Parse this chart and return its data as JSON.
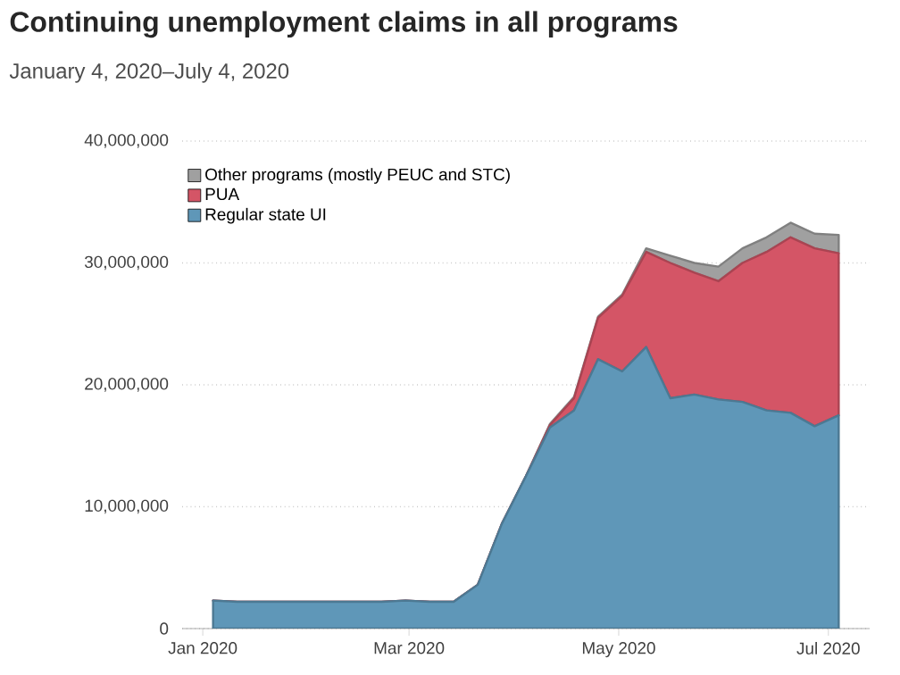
{
  "chart_data": {
    "type": "area",
    "title": "Continuing unemployment claims in all programs",
    "subtitle": "January 4, 2020–July 4, 2020",
    "stacked": true,
    "grid": "y",
    "legend": "top left",
    "x": [
      "2020-01-04",
      "2020-01-11",
      "2020-01-18",
      "2020-01-25",
      "2020-02-01",
      "2020-02-08",
      "2020-02-15",
      "2020-02-22",
      "2020-02-29",
      "2020-03-07",
      "2020-03-14",
      "2020-03-21",
      "2020-03-28",
      "2020-04-04",
      "2020-04-11",
      "2020-04-18",
      "2020-04-25",
      "2020-05-02",
      "2020-05-09",
      "2020-05-16",
      "2020-05-23",
      "2020-05-30",
      "2020-06-06",
      "2020-06-13",
      "2020-06-20",
      "2020-06-27",
      "2020-07-04"
    ],
    "series": [
      {
        "name": "Regular state UI",
        "color": "#5f97b8",
        "values": [
          2300000,
          2200000,
          2200000,
          2200000,
          2200000,
          2200000,
          2200000,
          2200000,
          2300000,
          2200000,
          2200000,
          3600000,
          8600000,
          12500000,
          16500000,
          17900000,
          22100000,
          21100000,
          23100000,
          18900000,
          19200000,
          18800000,
          18600000,
          17900000,
          17700000,
          16600000,
          17500000
        ]
      },
      {
        "name": "PUA",
        "color": "#d45566",
        "values": [
          0,
          0,
          0,
          0,
          0,
          0,
          0,
          0,
          0,
          0,
          0,
          0,
          0,
          0,
          200000,
          1000000,
          3400000,
          6200000,
          7800000,
          11100000,
          10000000,
          9700000,
          11400000,
          13000000,
          14400000,
          14600000,
          13300000
        ]
      },
      {
        "name": "Other programs (mostly PEUC and STC)",
        "color": "#a0a0a0",
        "values": [
          0,
          0,
          0,
          0,
          0,
          0,
          0,
          0,
          0,
          0,
          0,
          0,
          0,
          0,
          100000,
          100000,
          100000,
          100000,
          300000,
          600000,
          800000,
          1200000,
          1200000,
          1200000,
          1200000,
          1200000,
          1500000
        ]
      }
    ],
    "xlim": [
      "2019-12-26",
      "2020-07-13"
    ],
    "xticks": [
      {
        "value": "2020-01-01",
        "label": "Jan 2020"
      },
      {
        "value": "2020-03-01",
        "label": "Mar 2020"
      },
      {
        "value": "2020-05-01",
        "label": "May 2020"
      },
      {
        "value": "2020-07-01",
        "label": "Jul 2020"
      }
    ],
    "ylim": [
      0,
      40000000
    ],
    "yticks": [
      {
        "value": 0,
        "label": "0"
      },
      {
        "value": 10000000,
        "label": "10,000,000"
      },
      {
        "value": 20000000,
        "label": "20,000,000"
      },
      {
        "value": 30000000,
        "label": "30,000,000"
      },
      {
        "value": 40000000,
        "label": "40,000,000"
      }
    ]
  }
}
